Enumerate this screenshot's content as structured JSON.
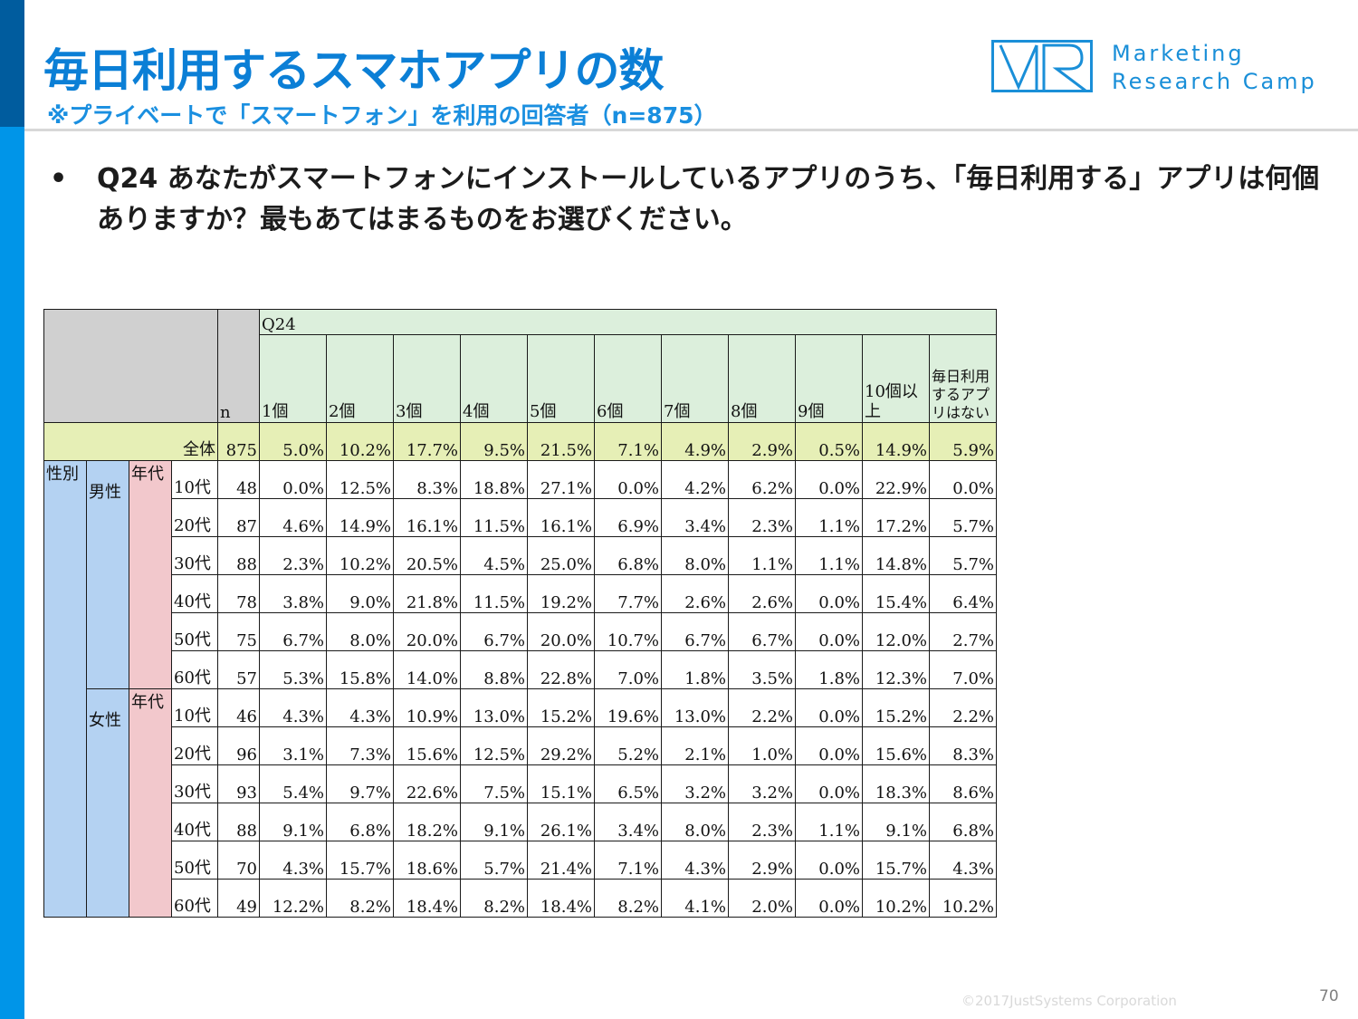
{
  "title": "毎日利用するスマホアプリの数",
  "subtitle": "※プライベートで「スマートフォン」を利用の回答者（n=875）",
  "logo": {
    "line1": "Marketing",
    "line2": "Research Camp"
  },
  "question": {
    "bullet": "•",
    "text": "Q24 あなたがスマートフォンにインストールしているアプリのうち、「毎日利用する」アプリは何個ありますか？最もあてはまるものをお選びください。"
  },
  "table": {
    "q_label": "Q24",
    "n_label": "n",
    "columns": [
      "1個",
      "2個",
      "3個",
      "4個",
      "5個",
      "6個",
      "7個",
      "8個",
      "9個",
      "10個以上",
      "毎日利用するアプリはない"
    ],
    "total": {
      "label": "全体",
      "n": "875",
      "values": [
        "5.0%",
        "10.2%",
        "17.7%",
        "9.5%",
        "21.5%",
        "7.1%",
        "4.9%",
        "2.9%",
        "0.5%",
        "14.9%",
        "5.9%"
      ]
    },
    "gender_label": "性別",
    "age_group_label": "年代",
    "male": {
      "label": "男性",
      "rows": [
        {
          "age": "10代",
          "n": "48",
          "values": [
            "0.0%",
            "12.5%",
            "8.3%",
            "18.8%",
            "27.1%",
            "0.0%",
            "4.2%",
            "6.2%",
            "0.0%",
            "22.9%",
            "0.0%"
          ]
        },
        {
          "age": "20代",
          "n": "87",
          "values": [
            "4.6%",
            "14.9%",
            "16.1%",
            "11.5%",
            "16.1%",
            "6.9%",
            "3.4%",
            "2.3%",
            "1.1%",
            "17.2%",
            "5.7%"
          ]
        },
        {
          "age": "30代",
          "n": "88",
          "values": [
            "2.3%",
            "10.2%",
            "20.5%",
            "4.5%",
            "25.0%",
            "6.8%",
            "8.0%",
            "1.1%",
            "1.1%",
            "14.8%",
            "5.7%"
          ]
        },
        {
          "age": "40代",
          "n": "78",
          "values": [
            "3.8%",
            "9.0%",
            "21.8%",
            "11.5%",
            "19.2%",
            "7.7%",
            "2.6%",
            "2.6%",
            "0.0%",
            "15.4%",
            "6.4%"
          ]
        },
        {
          "age": "50代",
          "n": "75",
          "values": [
            "6.7%",
            "8.0%",
            "20.0%",
            "6.7%",
            "20.0%",
            "10.7%",
            "6.7%",
            "6.7%",
            "0.0%",
            "12.0%",
            "2.7%"
          ]
        },
        {
          "age": "60代",
          "n": "57",
          "values": [
            "5.3%",
            "15.8%",
            "14.0%",
            "8.8%",
            "22.8%",
            "7.0%",
            "1.8%",
            "3.5%",
            "1.8%",
            "12.3%",
            "7.0%"
          ]
        }
      ]
    },
    "female": {
      "label": "女性",
      "rows": [
        {
          "age": "10代",
          "n": "46",
          "values": [
            "4.3%",
            "4.3%",
            "10.9%",
            "13.0%",
            "15.2%",
            "19.6%",
            "13.0%",
            "2.2%",
            "0.0%",
            "15.2%",
            "2.2%"
          ]
        },
        {
          "age": "20代",
          "n": "96",
          "values": [
            "3.1%",
            "7.3%",
            "15.6%",
            "12.5%",
            "29.2%",
            "5.2%",
            "2.1%",
            "1.0%",
            "0.0%",
            "15.6%",
            "8.3%"
          ]
        },
        {
          "age": "30代",
          "n": "93",
          "values": [
            "5.4%",
            "9.7%",
            "22.6%",
            "7.5%",
            "15.1%",
            "6.5%",
            "3.2%",
            "3.2%",
            "0.0%",
            "18.3%",
            "8.6%"
          ]
        },
        {
          "age": "40代",
          "n": "88",
          "values": [
            "9.1%",
            "6.8%",
            "18.2%",
            "9.1%",
            "26.1%",
            "3.4%",
            "8.0%",
            "2.3%",
            "1.1%",
            "9.1%",
            "6.8%"
          ]
        },
        {
          "age": "50代",
          "n": "70",
          "values": [
            "4.3%",
            "15.7%",
            "18.6%",
            "5.7%",
            "21.4%",
            "7.1%",
            "4.3%",
            "2.9%",
            "0.0%",
            "15.7%",
            "4.3%"
          ]
        },
        {
          "age": "60代",
          "n": "49",
          "values": [
            "12.2%",
            "8.2%",
            "18.4%",
            "8.2%",
            "18.4%",
            "8.2%",
            "4.1%",
            "2.0%",
            "0.0%",
            "10.2%",
            "10.2%"
          ]
        }
      ]
    }
  },
  "footer": {
    "copyright": "©2017JustSystems Corporation",
    "page": "70"
  },
  "colors": {
    "sidebar": "#0095e8",
    "title": "#0b7fd6",
    "header_green": "#dcefdc",
    "total_row": "#e6efb6",
    "gender_blue": "#b4d2f2",
    "age_pink": "#f2c8cc"
  }
}
